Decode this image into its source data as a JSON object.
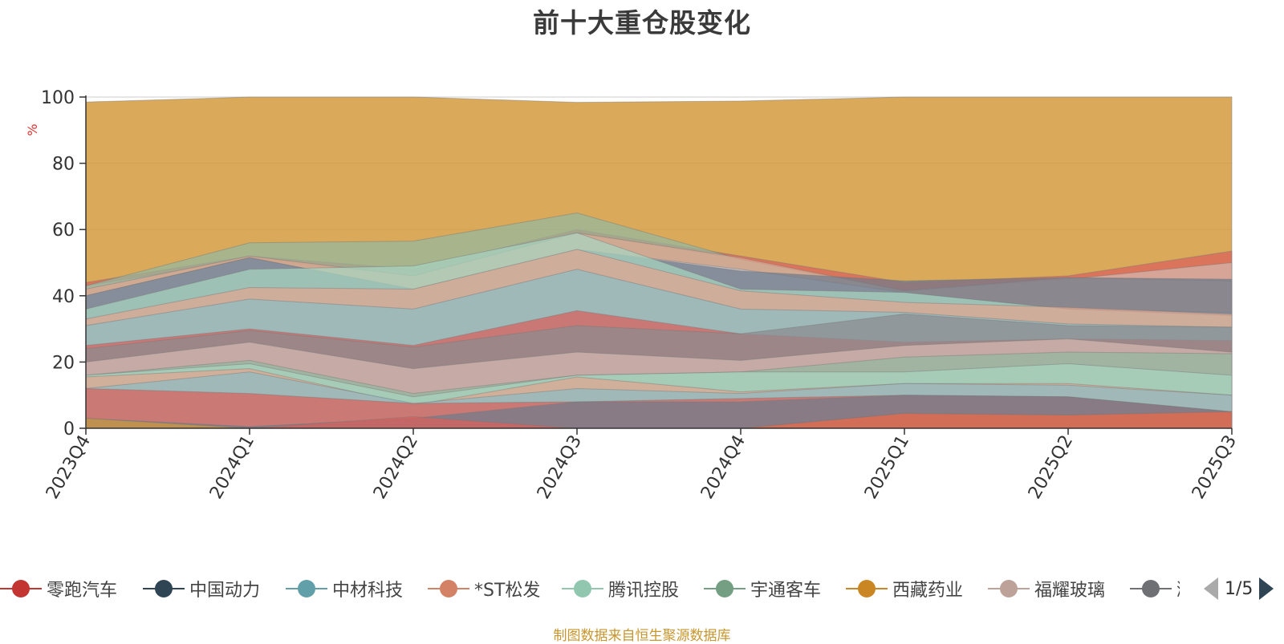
{
  "chart_data": {
    "type": "area",
    "title": "前十大重仓股变化",
    "ylabel": "%",
    "ylim": [
      0,
      100
    ],
    "yticks": [
      0,
      20,
      40,
      60,
      80,
      100
    ],
    "categories": [
      "2023Q4",
      "2024Q1",
      "2024Q2",
      "2024Q3",
      "2024Q4",
      "2025Q1",
      "2025Q2",
      "2025Q3"
    ],
    "series": [
      {
        "name": "西藏药业",
        "color": "#d49a3c",
        "values": [
          98.5,
          100,
          100,
          98.4,
          98.8,
          100,
          100,
          100
        ]
      },
      {
        "name": "零跑汽车",
        "color": "#d9605c",
        "values": [
          44,
          52,
          48,
          60,
          52,
          44,
          46,
          53.5
        ]
      },
      {
        "name": "福耀玻璃",
        "color": "#d4b8b0",
        "values": [
          43,
          51,
          46,
          59,
          51,
          41,
          45,
          50
        ]
      },
      {
        "name": "宇通客车",
        "color": "#93b8a0",
        "values": [
          43,
          56,
          56.5,
          65,
          51,
          41.5,
          45,
          44.5
        ]
      },
      {
        "name": "中材科技",
        "color": "#e0a58f",
        "values": [
          42,
          52,
          46,
          59,
          51.5,
          41.5,
          45.5,
          44.5
        ]
      },
      {
        "name": "*ST松发",
        "color": "#c2c8d4",
        "values": [
          40,
          51.5,
          42,
          54,
          48,
          41,
          36,
          35
        ]
      },
      {
        "name": "中国动力",
        "color": "#6f7c8c",
        "values": [
          40,
          51.5,
          42,
          54,
          47.5,
          44.5,
          45.5,
          45
        ]
      },
      {
        "name": "腾讯控股",
        "color": "#a8d6c0",
        "values": [
          36,
          48,
          49,
          59,
          42,
          41,
          36,
          34
        ]
      },
      {
        "name": "福耀玻璃",
        "color": "#e0a58f",
        "values": [
          33,
          42.5,
          42,
          54,
          41.5,
          38,
          36.5,
          34.5
        ]
      },
      {
        "name": "中材科技",
        "color": "#8dbcc4",
        "values": [
          31,
          39,
          36,
          48,
          36,
          35,
          31.5,
          30.5
        ]
      },
      {
        "name": "零跑汽车",
        "color": "#d9605c",
        "values": [
          25,
          30,
          25,
          35.5,
          28.5,
          26,
          27,
          26.5
        ]
      },
      {
        "name": "潍柴动力",
        "color": "#8c8c90",
        "values": [
          24,
          29.5,
          24.5,
          31,
          28.5,
          34.5,
          31,
          30.5
        ]
      },
      {
        "name": "福耀玻璃",
        "color": "#d4b8b0",
        "values": [
          20,
          26,
          18,
          23,
          20.5,
          25,
          27,
          23
        ]
      },
      {
        "name": "宇通客车",
        "color": "#93b8a0",
        "values": [
          16,
          20.5,
          10.5,
          16,
          17,
          21.5,
          23,
          22.5
        ]
      },
      {
        "name": "腾讯控股",
        "color": "#a8d6c0",
        "values": [
          16,
          19.5,
          9.5,
          16,
          17,
          17,
          19.5,
          16
        ]
      },
      {
        "name": "*ST松发",
        "color": "#e0a58f",
        "values": [
          15.5,
          18,
          7,
          15.5,
          11,
          13.5,
          13.5,
          10
        ]
      },
      {
        "name": "中材科技",
        "color": "#8dbcc4",
        "values": [
          12,
          17,
          7.5,
          12,
          10.5,
          13.5,
          13,
          10
        ]
      },
      {
        "name": "零跑汽车",
        "color": "#d9605c",
        "values": [
          12,
          10.5,
          7.5,
          8,
          9,
          10,
          9.5,
          5
        ]
      },
      {
        "name": "中国动力",
        "color": "#6f7c8c",
        "values": [
          3,
          0.5,
          3,
          8,
          8,
          10,
          9.5,
          5
        ]
      },
      {
        "name": "西藏药业",
        "color": "#d49a3c",
        "values": [
          3,
          0,
          0,
          0,
          0,
          4.5,
          4,
          5
        ]
      },
      {
        "name": "零跑汽车",
        "color": "#d9605c",
        "values": [
          0,
          0,
          3.5,
          0,
          0,
          4.5,
          4,
          5
        ]
      }
    ]
  },
  "legend": {
    "items": [
      {
        "name": "零跑汽车",
        "color": "#c23531"
      },
      {
        "name": "中国动力",
        "color": "#2f4554"
      },
      {
        "name": "中材科技",
        "color": "#61a0a8"
      },
      {
        "name": "*ST松发",
        "color": "#d48265"
      },
      {
        "name": "腾讯控股",
        "color": "#91c7ae"
      },
      {
        "name": "宇通客车",
        "color": "#749f83"
      },
      {
        "name": "西藏药业",
        "color": "#ca8622"
      },
      {
        "name": "福耀玻璃",
        "color": "#bda29a"
      },
      {
        "name": "潍",
        "color": "#6e7074"
      }
    ],
    "page_label": "1/5"
  },
  "source_text": "制图数据来自恒生聚源数据库"
}
